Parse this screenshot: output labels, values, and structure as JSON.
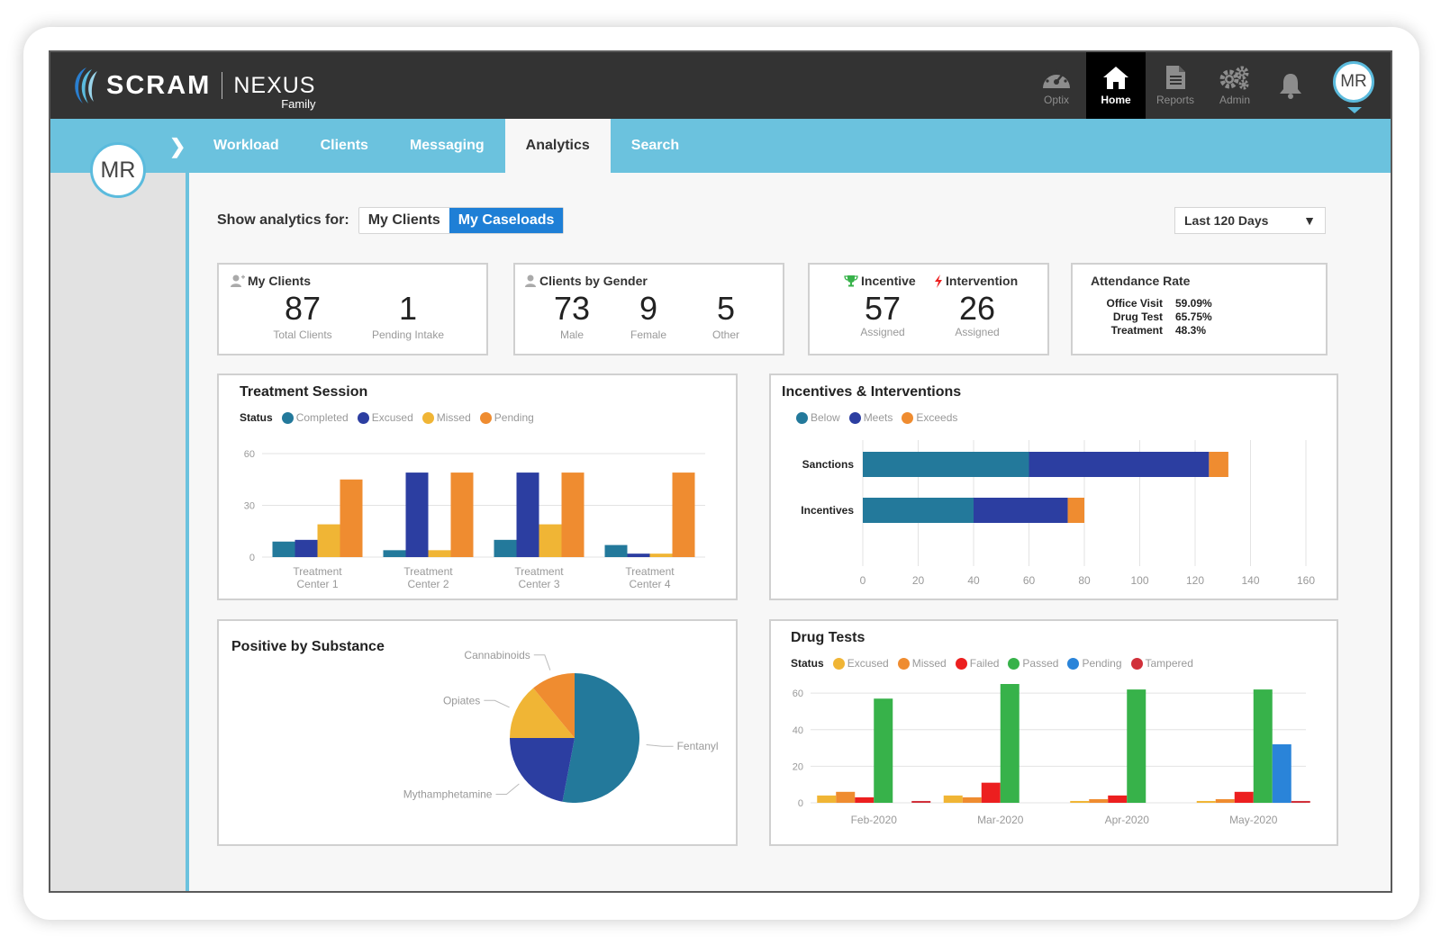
{
  "header": {
    "brand": "SCRAM",
    "product": "NEXUS",
    "product_sub": "Family",
    "nav": [
      {
        "label": "Optix",
        "icon": "gauge-icon"
      },
      {
        "label": "Home",
        "icon": "home-icon"
      },
      {
        "label": "Reports",
        "icon": "document-icon"
      },
      {
        "label": "Admin",
        "icon": "gears-icon"
      }
    ],
    "avatar_initials": "MR"
  },
  "tabs": [
    "Workload",
    "Clients",
    "Messaging",
    "Analytics",
    "Search"
  ],
  "active_tab": "Analytics",
  "sidebar": {
    "avatar_initials": "MR"
  },
  "analytics_for": {
    "label": "Show analytics for:",
    "options": [
      "My Clients",
      "My Caseloads"
    ],
    "selected": "My Caseloads"
  },
  "date_range": {
    "selected": "Last 120 Days"
  },
  "cards": {
    "my_clients": {
      "title": "My Clients",
      "total": "87",
      "total_label": "Total Clients",
      "pending": "1",
      "pending_label": "Pending Intake"
    },
    "gender": {
      "title": "Clients by Gender",
      "male": "73",
      "male_label": "Male",
      "female": "9",
      "female_label": "Female",
      "other": "5",
      "other_label": "Other"
    },
    "incentive": {
      "title": "Incentive",
      "value": "57",
      "label": "Assigned"
    },
    "intervention": {
      "title": "Intervention",
      "value": "26",
      "label": "Assigned"
    },
    "attendance": {
      "title": "Attendance Rate",
      "rows": [
        {
          "name": "Office Visit",
          "value": "59.09%"
        },
        {
          "name": "Drug Test",
          "value": "65.75%"
        },
        {
          "name": "Treatment",
          "value": "48.3%"
        }
      ]
    }
  },
  "colors": {
    "teal": "#23799b",
    "navy": "#2c3ea1",
    "yellow": "#f0b535",
    "orange": "#ef8c30",
    "red": "#ec1f1f",
    "green": "#37b24a",
    "blue": "#2a84d9",
    "crimson": "#d1303a",
    "accent": "#1e7fd6",
    "nav": "#6bc2de"
  },
  "treatment_session": {
    "title": "Treatment Session",
    "legend_status": "Status",
    "chart_data": {
      "type": "bar",
      "categories": [
        "Treatment Center 1",
        "Treatment Center 2",
        "Treatment Center 3",
        "Treatment Center 4"
      ],
      "series": [
        {
          "name": "Completed",
          "color": "#23799b",
          "values": [
            9,
            4,
            10,
            7
          ]
        },
        {
          "name": "Excused",
          "color": "#2c3ea1",
          "values": [
            10,
            49,
            49,
            2
          ]
        },
        {
          "name": "Missed",
          "color": "#f0b535",
          "values": [
            19,
            4,
            19,
            2
          ]
        },
        {
          "name": "Pending",
          "color": "#ef8c30",
          "values": [
            45,
            49,
            49,
            49
          ]
        }
      ],
      "yticks": [
        0,
        30,
        60
      ],
      "ylim": [
        0,
        60
      ]
    }
  },
  "incentives_interventions": {
    "title": "Incentives & Interventions",
    "chart_data": {
      "type": "bar",
      "orientation": "horizontal",
      "stacked": true,
      "categories": [
        "Sanctions",
        "Incentives"
      ],
      "series": [
        {
          "name": "Below",
          "color": "#23799b",
          "values": [
            60,
            40
          ]
        },
        {
          "name": "Meets",
          "color": "#2c3ea1",
          "values": [
            65,
            34
          ]
        },
        {
          "name": "Exceeds",
          "color": "#ef8c30",
          "values": [
            7,
            6
          ]
        }
      ],
      "xticks": [
        0,
        20,
        40,
        60,
        80,
        100,
        120,
        140,
        160
      ],
      "xlim": [
        0,
        160
      ]
    }
  },
  "positive_substance": {
    "title": "Positive by Substance",
    "chart_data": {
      "type": "pie",
      "slices": [
        {
          "label": "Fentanyl",
          "value": 53,
          "color": "#23799b"
        },
        {
          "label": "Mythamphetamine",
          "value": 22,
          "color": "#2c3ea1"
        },
        {
          "label": "Opiates",
          "value": 14,
          "color": "#f0b535"
        },
        {
          "label": "Cannabinoids",
          "value": 11,
          "color": "#ef8c30"
        }
      ]
    }
  },
  "drug_tests": {
    "title": "Drug Tests",
    "legend_status": "Status",
    "chart_data": {
      "type": "bar",
      "categories": [
        "Feb-2020",
        "Mar-2020",
        "Apr-2020",
        "May-2020"
      ],
      "series": [
        {
          "name": "Excused",
          "color": "#f0b535",
          "values": [
            4,
            4,
            1,
            1
          ]
        },
        {
          "name": "Missed",
          "color": "#ef8c30",
          "values": [
            6,
            3,
            2,
            2
          ]
        },
        {
          "name": "Failed",
          "color": "#ec1f1f",
          "values": [
            3,
            11,
            4,
            6
          ]
        },
        {
          "name": "Passed",
          "color": "#37b24a",
          "values": [
            57,
            65,
            62,
            62
          ]
        },
        {
          "name": "Pending",
          "color": "#2a84d9",
          "values": [
            0,
            0,
            0,
            32
          ]
        },
        {
          "name": "Tampered",
          "color": "#d1303a",
          "values": [
            1,
            0,
            0,
            1
          ]
        }
      ],
      "yticks": [
        0,
        20,
        40,
        60
      ],
      "ylim": [
        0,
        65
      ]
    }
  }
}
